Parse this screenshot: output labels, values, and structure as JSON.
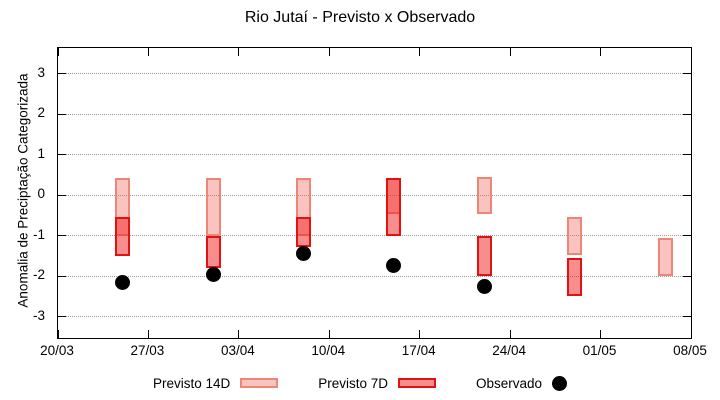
{
  "window_title": "Rio Jutaí - Previsto x Observado",
  "chart_data": {
    "type": "candlestick",
    "title": "Rio Jutaí - Previsto x Observado",
    "ylabel": "Anomalia de Preciptação Categorizada",
    "ylim": [
      -3.53,
      3.63
    ],
    "yticks": [
      3,
      2,
      1,
      0,
      -1,
      -2,
      -3
    ],
    "grid": "horizontal dotted lines at integer y values",
    "legend_position": "below plot, horizontal",
    "x_axis": {
      "tick_labels": [
        "20/03",
        "27/03",
        "03/04",
        "10/04",
        "17/04",
        "24/04",
        "01/05",
        "08/05"
      ],
      "tick_interval_days": 7,
      "span_days": 49
    },
    "series": [
      {
        "name": "Previsto 14D",
        "type": "box",
        "fill": "rgba(238,100,88,0.38)",
        "border": "#ee8678",
        "points": [
          {
            "date": "25/03",
            "day": 5,
            "high": 0.42,
            "low": -1.02
          },
          {
            "date": "01/04",
            "day": 12,
            "high": 0.42,
            "low": -1.0
          },
          {
            "date": "08/04",
            "day": 19,
            "high": 0.42,
            "low": -1.02
          },
          {
            "date": "15/04",
            "day": 26,
            "high": 0.42,
            "low": -0.48
          },
          {
            "date": "22/04",
            "day": 33,
            "high": 0.44,
            "low": -0.48
          },
          {
            "date": "29/04",
            "day": 40,
            "high": -0.54,
            "low": -1.48
          },
          {
            "date": "06/05",
            "day": 47,
            "high": -1.05,
            "low": -2.0
          }
        ]
      },
      {
        "name": "Previsto 7D",
        "type": "box",
        "fill": "rgba(240,30,30,0.5)",
        "border": "#e01212",
        "points": [
          {
            "date": "25/03",
            "day": 5,
            "high": -0.54,
            "low": -1.5
          },
          {
            "date": "01/04",
            "day": 12,
            "high": -1.0,
            "low": -1.8
          },
          {
            "date": "08/04",
            "day": 19,
            "high": -0.54,
            "low": -1.28
          },
          {
            "date": "15/04",
            "day": 26,
            "high": 0.42,
            "low": -1.02
          },
          {
            "date": "22/04",
            "day": 33,
            "high": -1.02,
            "low": -2.0
          },
          {
            "date": "29/04",
            "day": 40,
            "high": -1.55,
            "low": -2.5
          }
        ]
      },
      {
        "name": "Observado",
        "type": "point",
        "color": "#000000",
        "points": [
          {
            "date": "25/03",
            "day": 5,
            "value": -2.15
          },
          {
            "date": "01/04",
            "day": 12,
            "value": -1.95
          },
          {
            "date": "08/04",
            "day": 19,
            "value": -1.45
          },
          {
            "date": "15/04",
            "day": 26,
            "value": -1.75
          },
          {
            "date": "22/04",
            "day": 33,
            "value": -2.25
          }
        ]
      }
    ]
  }
}
